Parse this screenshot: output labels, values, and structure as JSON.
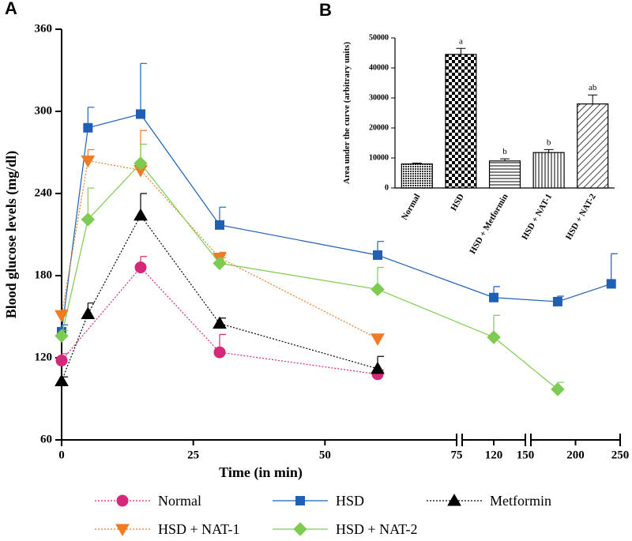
{
  "chart_data": [
    {
      "type": "line",
      "panel": "A",
      "x_label": "Time (in min)",
      "y_label": "Blood glucose levels (mg/dl)",
      "ylim": [
        60,
        360
      ],
      "yticks": [
        60,
        120,
        180,
        240,
        300,
        360
      ],
      "x_segments": [
        {
          "xlim": [
            0,
            75
          ],
          "xticks": [
            0,
            25,
            50,
            75
          ]
        },
        {
          "xlim": [
            90,
            150
          ],
          "xticks": [
            120,
            150
          ]
        },
        {
          "xlim": [
            150,
            250
          ],
          "xticks": [
            200,
            250
          ]
        }
      ],
      "series": [
        {
          "name": "Normal",
          "color": "#d6287a",
          "marker": "circle",
          "linestyle": "dotted",
          "x": [
            0,
            15,
            30,
            60
          ],
          "values": [
            118,
            186,
            124,
            108
          ],
          "errors": [
            5,
            8,
            13,
            3
          ]
        },
        {
          "name": "HSD",
          "color": "#1f5fb4",
          "marker": "square",
          "linestyle": "solid",
          "x": [
            0,
            5,
            15,
            30,
            60,
            120,
            180,
            240
          ],
          "values": [
            139,
            288,
            298,
            217,
            195,
            164,
            161,
            174
          ],
          "errors": [
            5,
            15,
            37,
            13,
            10,
            8,
            4,
            22
          ]
        },
        {
          "name": "Metformin",
          "color": "#000000",
          "marker": "triangle",
          "linestyle": "dotted",
          "x": [
            0,
            5,
            15,
            30,
            60
          ],
          "values": [
            103,
            152,
            224,
            145,
            112
          ],
          "errors": [
            3,
            8,
            16,
            4,
            9
          ]
        },
        {
          "name": "HSD + NAT-1",
          "color": "#f07b22",
          "marker": "triangle-down",
          "linestyle": "dotted",
          "x": [
            0,
            5,
            15,
            30,
            60
          ],
          "values": [
            151,
            264,
            257,
            193,
            134
          ],
          "errors": [
            4,
            8,
            29,
            4,
            3
          ]
        },
        {
          "name": "HSD + NAT-2",
          "color": "#7dcb50",
          "marker": "diamond",
          "linestyle": "solid",
          "x": [
            0,
            5,
            15,
            30,
            60,
            120,
            180
          ],
          "values": [
            136,
            221,
            262,
            189,
            170,
            135,
            97
          ],
          "errors": [
            4,
            23,
            14,
            4,
            16,
            16,
            5
          ]
        }
      ]
    },
    {
      "type": "bar",
      "panel": "B",
      "y_label": "Area under the curve (arbitrary units)",
      "ylim": [
        0,
        50000
      ],
      "yticks": [
        0,
        10000,
        20000,
        30000,
        40000,
        50000
      ],
      "categories": [
        "Normal",
        "HSD",
        "HSD + Metformin",
        "HSD + NAT-1",
        "HSD + NAT-2"
      ],
      "values": [
        8000,
        44500,
        9000,
        11800,
        28000
      ],
      "errors": [
        300,
        2000,
        700,
        1000,
        3000
      ],
      "annotations": [
        null,
        "a",
        "b",
        "b",
        "ab"
      ]
    }
  ]
}
